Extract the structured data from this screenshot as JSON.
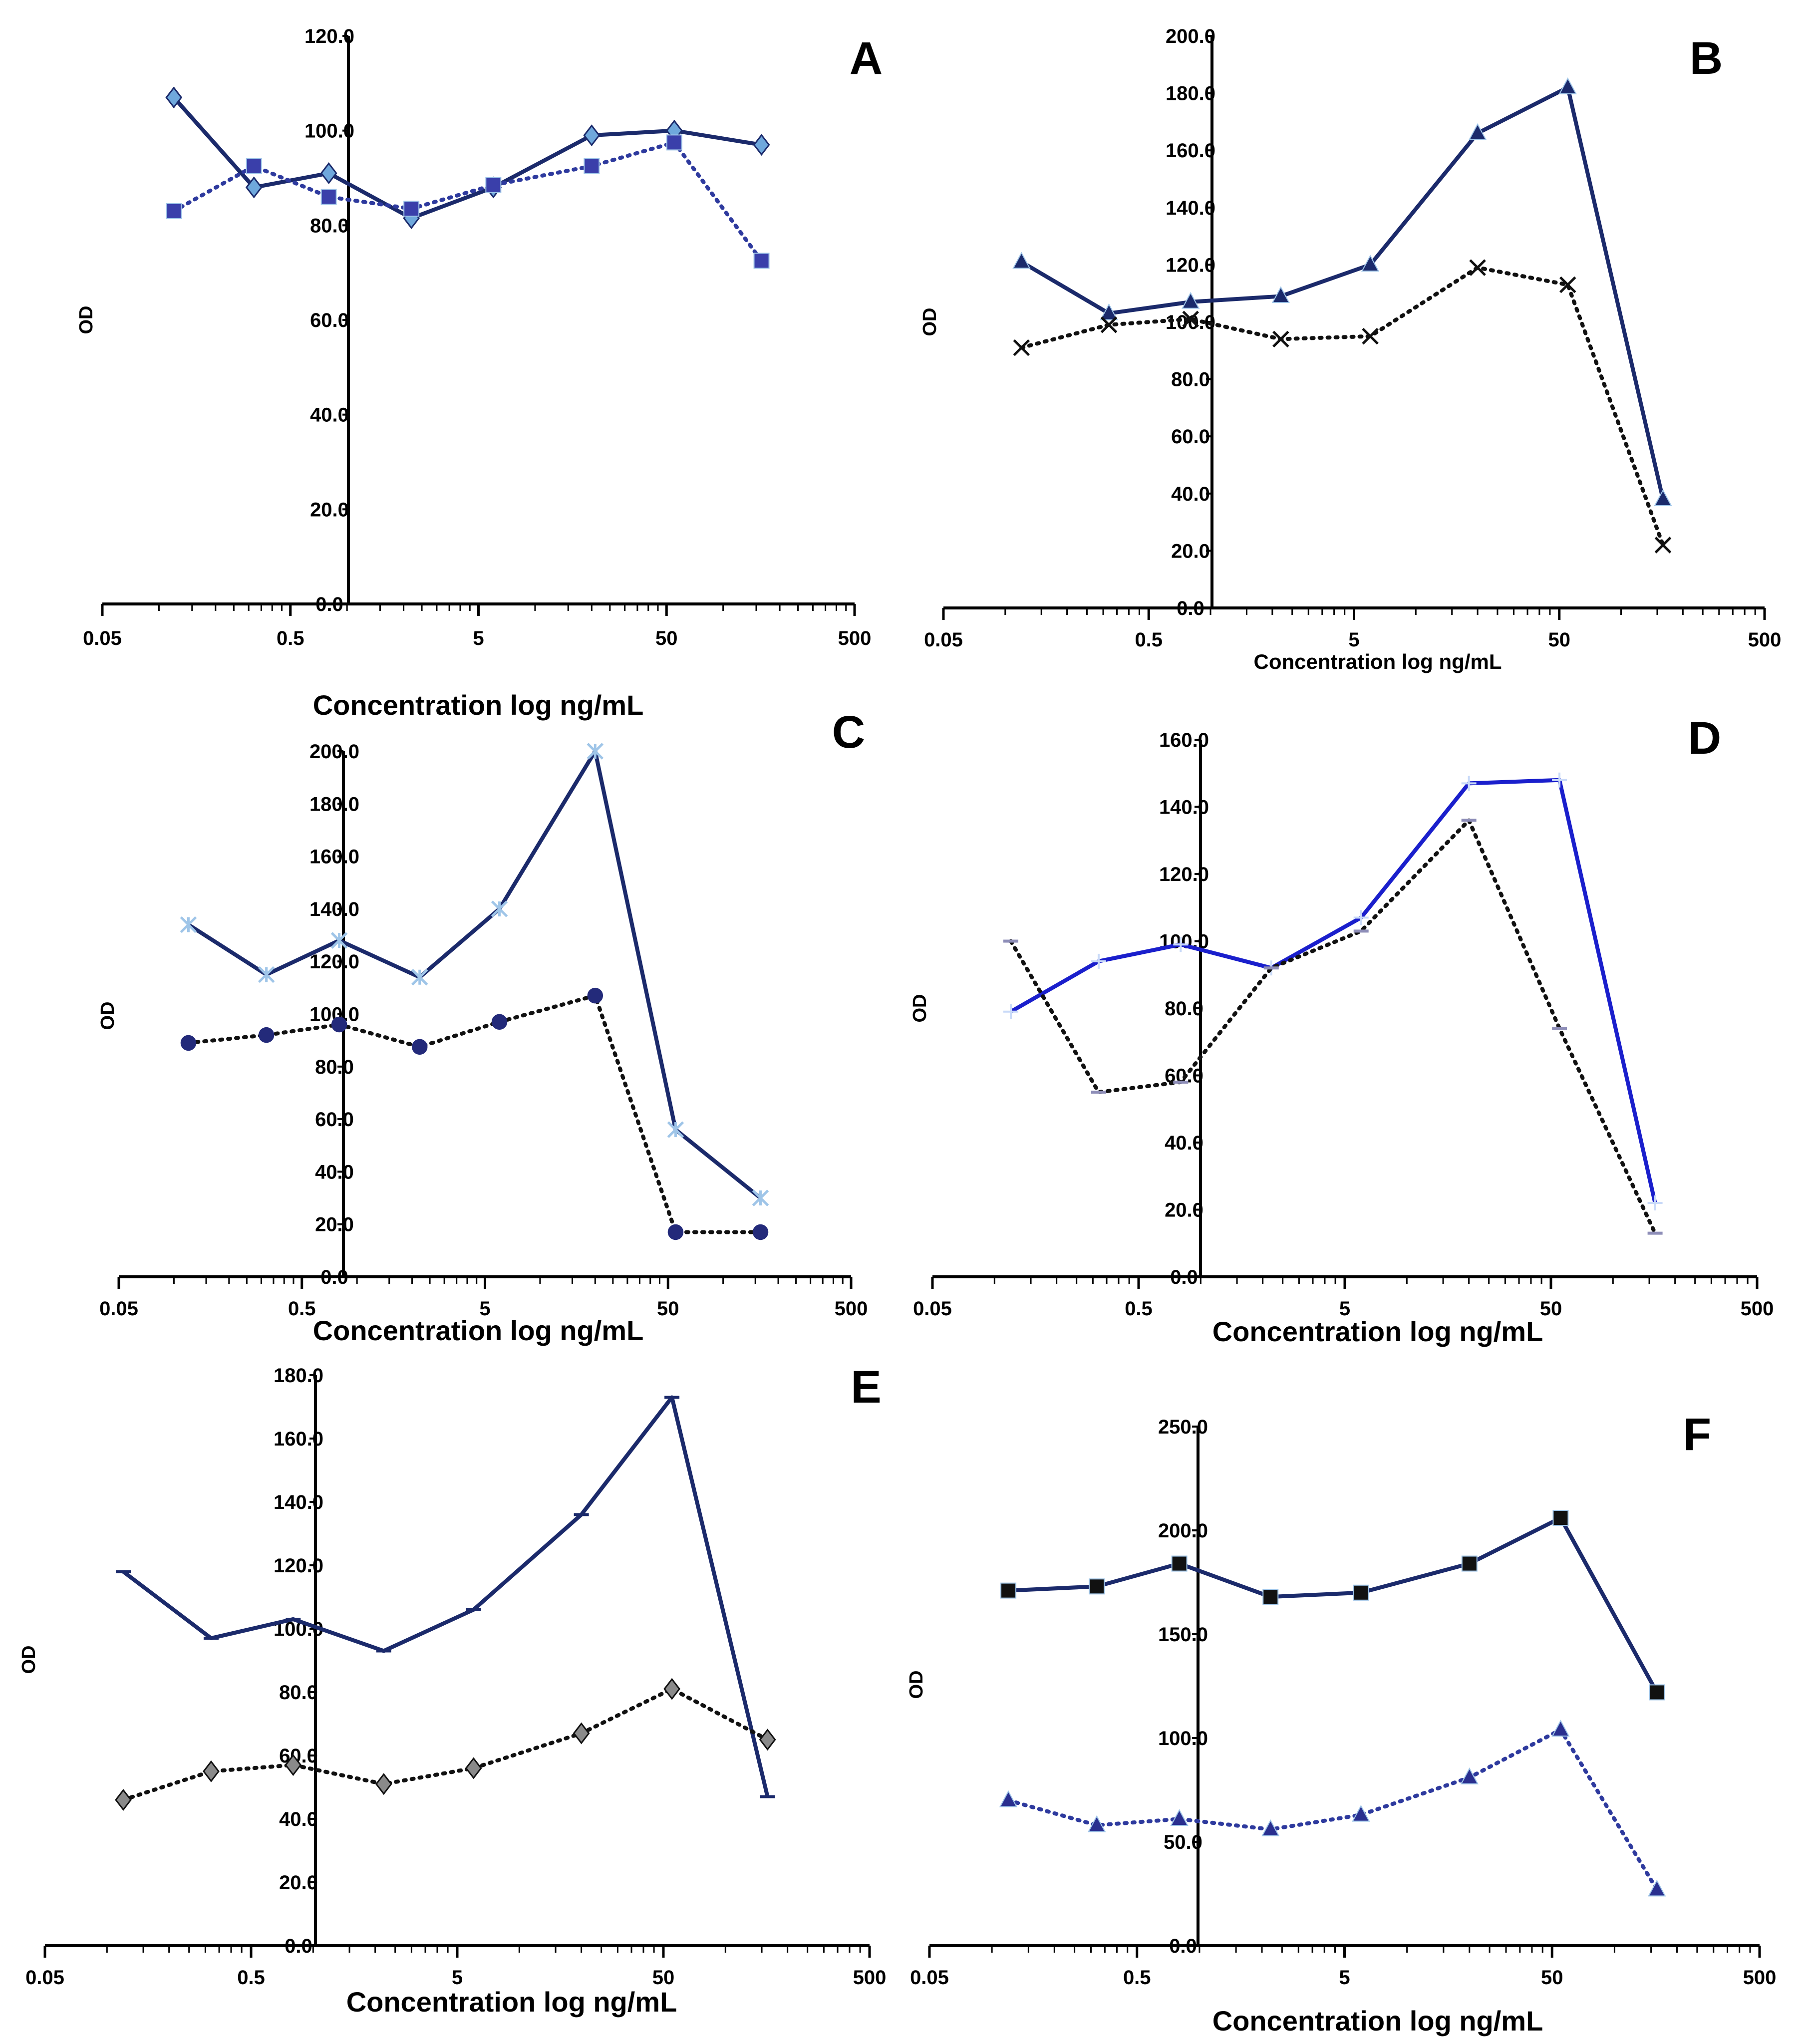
{
  "figure": {
    "panels": [
      "A",
      "B",
      "C",
      "D",
      "E",
      "F"
    ]
  },
  "chart_data": [
    {
      "panel": "A",
      "type": "line",
      "title": "",
      "xlabel": "Concentration  log ng/mL",
      "ylabel": "OD",
      "x_scale": "log",
      "xlim": [
        0.05,
        500
      ],
      "ylim": [
        0,
        120
      ],
      "y_ticks": [
        "0.0",
        "20.0",
        "40.0",
        "60.0",
        "80.0",
        "100.0",
        "120.0"
      ],
      "x_ticks": [
        "0.05",
        "0.5",
        "5",
        "50",
        "500"
      ],
      "x": [
        0.12,
        0.32,
        0.8,
        2.2,
        6,
        20,
        55,
        160
      ],
      "series": [
        {
          "name": "series-1",
          "style": "solid",
          "color": "#1b2a6b",
          "marker": "diamond",
          "marker_color": "#6fa8dc",
          "values": [
            107,
            88,
            91,
            81.5,
            88,
            99,
            100,
            97
          ]
        },
        {
          "name": "series-2",
          "style": "dotted",
          "color": "#2e3a9e",
          "marker": "square",
          "marker_color": "#3a3faa",
          "values": [
            83,
            92.5,
            86,
            83.5,
            88.5,
            92.5,
            97.5,
            72.5
          ]
        }
      ]
    },
    {
      "panel": "B",
      "type": "line",
      "title": "",
      "xlabel": "Concentration  log ng/mL",
      "ylabel": "OD",
      "x_scale": "log",
      "xlim": [
        0.05,
        500
      ],
      "ylim": [
        0,
        200
      ],
      "y_ticks": [
        "0.0",
        "20.0",
        "40.0",
        "60.0",
        "80.0",
        "100.0",
        "120.0",
        "140.0",
        "160.0",
        "180.0",
        "200.0"
      ],
      "x_ticks": [
        "0.05",
        "0.5",
        "5",
        "50",
        "500"
      ],
      "x": [
        0.12,
        0.32,
        0.8,
        2.2,
        6,
        20,
        55,
        160
      ],
      "series": [
        {
          "name": "series-1",
          "style": "solid",
          "color": "#1b2a6b",
          "marker": "triangle",
          "marker_color": "#1b2a6b",
          "values": [
            121,
            103,
            107,
            109,
            120,
            166,
            182,
            38
          ]
        },
        {
          "name": "series-2",
          "style": "dotted",
          "color": "#111111",
          "marker": "x",
          "marker_color": "#111111",
          "values": [
            91,
            99,
            101,
            94,
            95,
            119,
            113,
            22
          ]
        }
      ]
    },
    {
      "panel": "C",
      "type": "line",
      "title": "",
      "xlabel": "Concentration  log ng/mL",
      "ylabel": "OD",
      "x_scale": "log",
      "xlim": [
        0.05,
        500
      ],
      "ylim": [
        0,
        200
      ],
      "y_ticks": [
        "0.0",
        "20.0",
        "40.0",
        "60.0",
        "80.0",
        "100.0",
        "120.0",
        "140.0",
        "160.0",
        "180.0",
        "200.0"
      ],
      "x_ticks": [
        "0.05",
        "0.5",
        "5",
        "50",
        "500"
      ],
      "x": [
        0.12,
        0.32,
        0.8,
        2.2,
        6,
        20,
        55,
        160
      ],
      "series": [
        {
          "name": "series-1",
          "style": "solid",
          "color": "#1b2a6b",
          "marker": "asterisk",
          "marker_color": "#9fc5e8",
          "values": [
            134,
            115,
            128,
            114,
            140,
            200,
            56,
            30
          ]
        },
        {
          "name": "series-2",
          "style": "dotted",
          "color": "#111111",
          "marker": "circle",
          "marker_color": "#232a7a",
          "values": [
            89,
            92,
            96,
            87.5,
            97,
            107,
            17,
            17
          ]
        }
      ]
    },
    {
      "panel": "D",
      "type": "line",
      "title": "",
      "xlabel": "Concentration  log ng/mL",
      "ylabel": "OD",
      "x_scale": "log",
      "xlim": [
        0.05,
        500
      ],
      "ylim": [
        0,
        160
      ],
      "y_ticks": [
        "0.0",
        "20.0",
        "40.0",
        "60.0",
        "80.0",
        "100.0",
        "120.0",
        "140.0",
        "160.0"
      ],
      "x_ticks": [
        "0.05",
        "0.5",
        "5",
        "50",
        "500"
      ],
      "x": [
        0.12,
        0.32,
        0.8,
        2.2,
        6,
        20,
        55,
        160
      ],
      "series": [
        {
          "name": "series-1",
          "style": "solid",
          "color": "#1a1fcc",
          "marker": "plus",
          "marker_color": "#c9daf8",
          "values": [
            79,
            94,
            99,
            92,
            107,
            147,
            148,
            22
          ]
        },
        {
          "name": "series-2",
          "style": "dotted",
          "color": "#111111",
          "marker": "dash",
          "marker_color": "#8e8eb8",
          "values": [
            100,
            55,
            58,
            92,
            103,
            136,
            74,
            13
          ]
        }
      ]
    },
    {
      "panel": "E",
      "type": "line",
      "title": "",
      "xlabel": "Concentration  log ng/mL",
      "ylabel": "OD",
      "x_scale": "log",
      "xlim": [
        0.05,
        500
      ],
      "ylim": [
        0,
        180
      ],
      "y_ticks": [
        "0.0",
        "20.0",
        "40.0",
        "60.0",
        "80.0",
        "100.0",
        "120.0",
        "140.0",
        "160.0",
        "180.0"
      ],
      "x_ticks": [
        "0.05",
        "0.5",
        "5",
        "50",
        "500"
      ],
      "x": [
        0.12,
        0.32,
        0.8,
        2.2,
        6,
        20,
        55,
        160
      ],
      "series": [
        {
          "name": "series-1",
          "style": "solid",
          "color": "#1b2a6b",
          "marker": "dash",
          "marker_color": "#1b2a6b",
          "values": [
            118,
            97,
            103,
            93,
            106,
            136,
            173,
            47
          ]
        },
        {
          "name": "series-2",
          "style": "dotted",
          "color": "#111111",
          "marker": "diamond",
          "marker_color": "#8a8a8a",
          "values": [
            46,
            55,
            57,
            51,
            56,
            67,
            81,
            65
          ]
        }
      ]
    },
    {
      "panel": "F",
      "type": "line",
      "title": "",
      "xlabel": "Concentration  log ng/mL",
      "ylabel": "OD",
      "x_scale": "log",
      "xlim": [
        0.05,
        500
      ],
      "ylim": [
        0,
        250
      ],
      "y_ticks": [
        "0.0",
        "50.0",
        "100.0",
        "150.0",
        "200.0",
        "250.0"
      ],
      "x_ticks": [
        "0.05",
        "0.5",
        "5",
        "50",
        "500"
      ],
      "x": [
        0.12,
        0.32,
        0.8,
        2.2,
        6,
        20,
        55,
        160
      ],
      "series": [
        {
          "name": "series-1",
          "style": "solid",
          "color": "#1b2a6b",
          "marker": "square",
          "marker_color": "#111111",
          "values": [
            171,
            173,
            184,
            168,
            170,
            184,
            206,
            122
          ]
        },
        {
          "name": "series-2",
          "style": "dotted",
          "color": "#2e3a9e",
          "marker": "triangle",
          "marker_color": "#2a2f8f",
          "values": [
            70,
            58,
            61,
            56,
            63,
            81,
            104,
            27
          ]
        }
      ]
    }
  ]
}
